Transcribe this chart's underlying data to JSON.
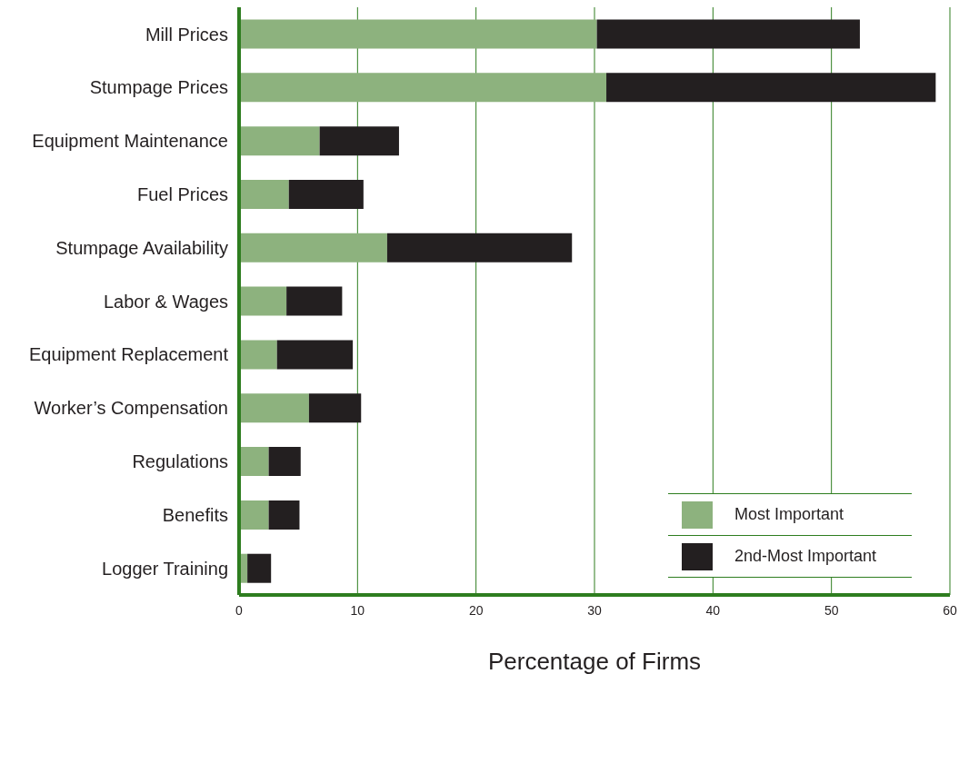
{
  "chart_data": {
    "type": "bar",
    "orientation": "horizontal",
    "stacked": true,
    "categories": [
      "Mill Prices",
      "Stumpage Prices",
      "Equipment Maintenance",
      "Fuel Prices",
      "Stumpage Availability",
      "Labor & Wages",
      "Equipment Replacement",
      "Worker’s Compensation",
      "Regulations",
      "Benefits",
      "Logger Training"
    ],
    "series": [
      {
        "name": "Most Important",
        "color": "#8db27e",
        "values": [
          30.2,
          31.0,
          6.8,
          4.2,
          12.5,
          4.0,
          3.2,
          5.9,
          2.5,
          2.5,
          0.7
        ]
      },
      {
        "name": "2nd-Most Important",
        "color": "#231f20",
        "values": [
          22.2,
          27.8,
          6.7,
          6.3,
          15.6,
          4.7,
          6.4,
          4.4,
          2.7,
          2.6,
          2.0
        ]
      }
    ],
    "xlabel": "Percentage of Firms",
    "xlim": [
      0,
      60
    ],
    "xticks": [
      0,
      10,
      20,
      30,
      40,
      50,
      60
    ],
    "grid": "x",
    "legend": "bottom right"
  }
}
